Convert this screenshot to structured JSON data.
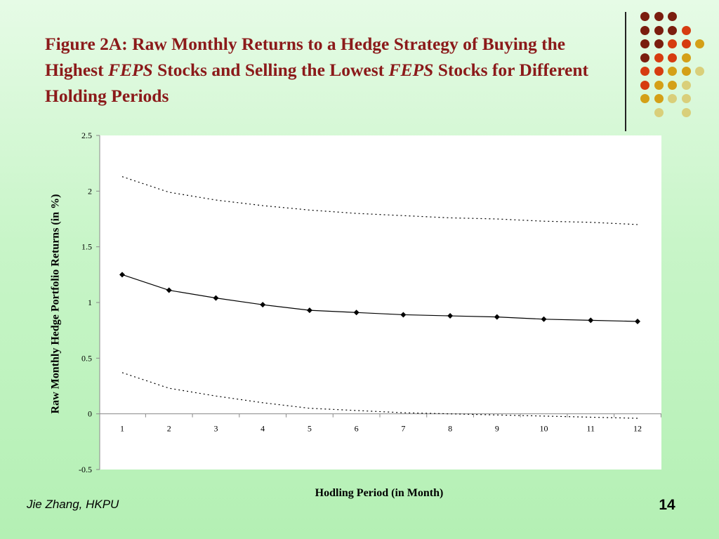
{
  "slide": {
    "title_parts": [
      {
        "text": "Figure 2A: Raw Monthly Returns to a Hedge Strategy of Buying the Highest ",
        "italic": false
      },
      {
        "text": "FEPS",
        "italic": true
      },
      {
        "text": " Stocks and Selling the Lowest ",
        "italic": false
      },
      {
        "text": "FEPS",
        "italic": true
      },
      {
        "text": " Stocks for Different Holding Periods",
        "italic": false
      }
    ],
    "footer_author": "Jie Zhang, HKPU",
    "page_number": "14",
    "colors": {
      "title": "#8b1a1a",
      "dot_dark": "#7a1d0e",
      "dot_red": "#d63c10",
      "dot_gold": "#d4a017",
      "dot_pale": "#d9cf7a"
    }
  },
  "chart_data": {
    "type": "line",
    "title": "",
    "xlabel": "Hodling Period (in Month)",
    "ylabel": "Raw Monthly Hedge Portfolio Returns (in %)",
    "categories": [
      "1",
      "2",
      "3",
      "4",
      "5",
      "6",
      "7",
      "8",
      "9",
      "10",
      "11",
      "12"
    ],
    "x": [
      1,
      2,
      3,
      4,
      5,
      6,
      7,
      8,
      9,
      10,
      11,
      12
    ],
    "ylim": [
      -0.5,
      2.5
    ],
    "yticks": [
      "2.5",
      "2",
      "1.5",
      "1",
      "0.5",
      "0",
      "-0.5"
    ],
    "ytick_values": [
      2.5,
      2,
      1.5,
      1,
      0.5,
      0,
      -0.5
    ],
    "grid": false,
    "legend": "none",
    "series": [
      {
        "style": "solid-with-markers",
        "values": [
          1.25,
          1.11,
          1.04,
          0.98,
          0.93,
          0.91,
          0.89,
          0.88,
          0.87,
          0.85,
          0.84,
          0.83
        ]
      },
      {
        "style": "dotted-upper",
        "values": [
          2.13,
          1.99,
          1.92,
          1.87,
          1.83,
          1.8,
          1.78,
          1.76,
          1.75,
          1.73,
          1.72,
          1.7
        ]
      },
      {
        "style": "dotted-lower",
        "values": [
          0.37,
          0.23,
          0.16,
          0.1,
          0.05,
          0.03,
          0.01,
          0.0,
          -0.01,
          -0.02,
          -0.03,
          -0.04
        ]
      }
    ]
  }
}
